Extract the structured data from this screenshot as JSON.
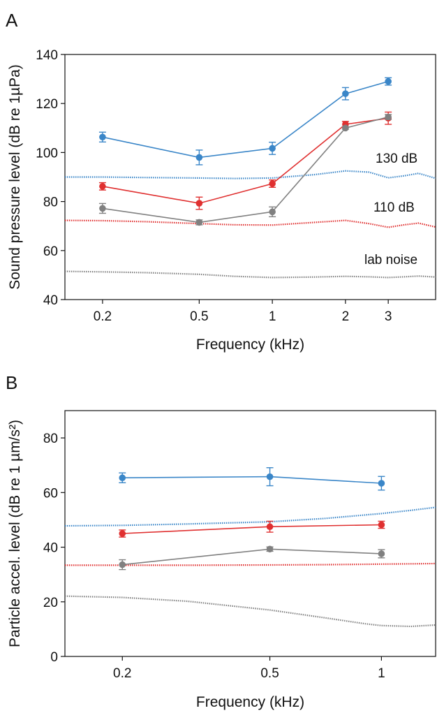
{
  "chart_data": [
    {
      "panel": "A",
      "type": "line",
      "xlabel": "Frequency (kHz)",
      "ylabel": "Sound pressure level (dB re 1µPa)",
      "x_scale": "log",
      "xlim": [
        0.14,
        4.7
      ],
      "ylim": [
        40,
        140
      ],
      "x_ticks": [
        0.2,
        0.5,
        1,
        2,
        3
      ],
      "x_tick_labels": [
        "0.2",
        "0.5",
        "1",
        "2",
        "3"
      ],
      "y_ticks": [
        40,
        60,
        80,
        100,
        120,
        140
      ],
      "y_tick_labels": [
        "40",
        "60",
        "80",
        "100",
        "120",
        "140"
      ],
      "x": [
        0.2,
        0.5,
        1,
        2,
        3
      ],
      "series": [
        {
          "color": "#3a86c8",
          "values": [
            106.3,
            98.0,
            101.7,
            124.0,
            129.0
          ],
          "errors": [
            2.0,
            3.0,
            2.5,
            2.5,
            1.5
          ]
        },
        {
          "color": "#e03030",
          "values": [
            86.2,
            79.3,
            87.3,
            111.5,
            114.0
          ],
          "errors": [
            1.5,
            2.5,
            1.5,
            1.2,
            2.5
          ]
        },
        {
          "color": "#808080",
          "values": [
            77.2,
            71.5,
            75.8,
            110.0,
            114.5
          ],
          "errors": [
            2.0,
            1.0,
            2.0,
            0.5,
            1.0
          ]
        }
      ],
      "background_curves": [
        {
          "label": "130 dB",
          "color": "#3a86c8",
          "x": [
            0.14,
            0.2,
            0.3,
            0.5,
            0.7,
            1.0,
            1.5,
            2.0,
            2.5,
            3.0,
            3.5,
            4.0,
            4.7
          ],
          "values": [
            90.0,
            90.0,
            89.8,
            89.6,
            89.4,
            89.6,
            91.0,
            92.5,
            92.0,
            89.7,
            90.5,
            91.5,
            89.5
          ]
        },
        {
          "label": "110 dB",
          "color": "#e03030",
          "x": [
            0.14,
            0.2,
            0.3,
            0.5,
            0.7,
            1.0,
            1.5,
            2.0,
            2.5,
            3.0,
            3.5,
            4.0,
            4.7
          ],
          "values": [
            72.3,
            72.2,
            71.8,
            71.0,
            70.5,
            70.4,
            71.5,
            72.3,
            71.0,
            69.5,
            70.5,
            71.2,
            69.6
          ]
        },
        {
          "label": "lab noise",
          "color": "#808080",
          "x": [
            0.14,
            0.2,
            0.3,
            0.5,
            0.7,
            1.0,
            1.5,
            2.0,
            2.5,
            3.0,
            3.5,
            4.0,
            4.7
          ],
          "values": [
            51.5,
            51.3,
            51.0,
            50.3,
            49.5,
            49.0,
            49.2,
            49.5,
            49.3,
            49.0,
            49.3,
            49.6,
            49.2
          ]
        }
      ]
    },
    {
      "panel": "B",
      "type": "line",
      "xlabel": "Frequency (kHz)",
      "ylabel": "Particle accel. level (dB re 1 µm/s²)",
      "x_scale": "log",
      "xlim": [
        0.14,
        1.4
      ],
      "ylim": [
        0,
        90
      ],
      "x_ticks": [
        0.2,
        0.5,
        1
      ],
      "x_tick_labels": [
        "0.2",
        "0.5",
        "1"
      ],
      "y_ticks": [
        0,
        20,
        40,
        60,
        80
      ],
      "y_tick_labels": [
        "0",
        "20",
        "40",
        "60",
        "80"
      ],
      "x": [
        0.2,
        0.5,
        1
      ],
      "series": [
        {
          "color": "#3a86c8",
          "values": [
            65.4,
            65.8,
            63.4
          ],
          "errors": [
            1.8,
            3.3,
            2.5
          ]
        },
        {
          "color": "#e03030",
          "values": [
            45.0,
            47.5,
            48.2
          ],
          "errors": [
            1.3,
            2.0,
            1.3
          ]
        },
        {
          "color": "#808080",
          "values": [
            33.6,
            39.3,
            37.6
          ],
          "errors": [
            1.8,
            0.8,
            1.5
          ]
        }
      ],
      "background_curves": [
        {
          "color": "#3a86c8",
          "x": [
            0.14,
            0.2,
            0.3,
            0.5,
            0.7,
            1.0,
            1.2,
            1.4
          ],
          "values": [
            47.8,
            48.0,
            48.5,
            49.3,
            50.5,
            52.3,
            53.5,
            54.6
          ]
        },
        {
          "color": "#e03030",
          "x": [
            0.14,
            0.2,
            0.3,
            0.5,
            0.7,
            1.0,
            1.2,
            1.4
          ],
          "values": [
            33.4,
            33.4,
            33.4,
            33.5,
            33.6,
            33.8,
            33.9,
            34.0
          ]
        },
        {
          "color": "#808080",
          "x": [
            0.14,
            0.2,
            0.3,
            0.5,
            0.7,
            0.9,
            1.0,
            1.2,
            1.4
          ],
          "values": [
            22.1,
            21.6,
            20.2,
            17.0,
            14.2,
            12.0,
            11.3,
            11.0,
            11.5
          ]
        }
      ]
    }
  ]
}
